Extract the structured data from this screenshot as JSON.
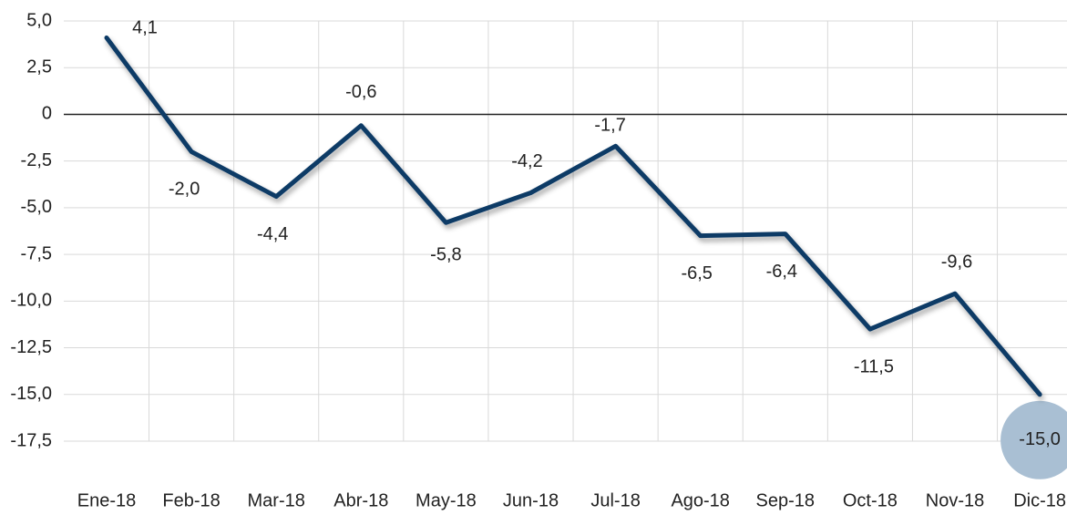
{
  "chart_data": {
    "type": "line",
    "categories": [
      "Ene-18",
      "Feb-18",
      "Mar-18",
      "Abr-18",
      "May-18",
      "Jun-18",
      "Jul-18",
      "Ago-18",
      "Sep-18",
      "Oct-18",
      "Nov-18",
      "Dic-18"
    ],
    "series": [
      {
        "color": "#0e3a66",
        "values": [
          4.1,
          -2.0,
          -4.4,
          -0.6,
          -5.8,
          -4.2,
          -1.7,
          -6.5,
          -6.4,
          -11.5,
          -9.6,
          -15.0
        ],
        "value_labels": [
          "4,1",
          "-2,0",
          "-4,4",
          "-0,6",
          "-5,8",
          "-4,2",
          "-1,7",
          "-6,5",
          "-6,4",
          "-11,5",
          "-9,6",
          "-15,0"
        ]
      }
    ],
    "ylim": [
      -17.5,
      5
    ],
    "yticks": [
      {
        "value": 5,
        "label": "5,0"
      },
      {
        "value": 2.5,
        "label": "2,5"
      },
      0,
      {
        "value": -2.5,
        "label": "-2,5"
      },
      {
        "value": -5,
        "label": "-5,0"
      },
      {
        "value": -7.5,
        "label": "-7,5"
      },
      {
        "value": -10,
        "label": "-10,0"
      },
      {
        "value": -12.5,
        "label": "-12,5"
      },
      {
        "value": -15,
        "label": "-15,0"
      },
      {
        "value": -17.5,
        "label": "-17,5"
      }
    ],
    "grid": true
  }
}
